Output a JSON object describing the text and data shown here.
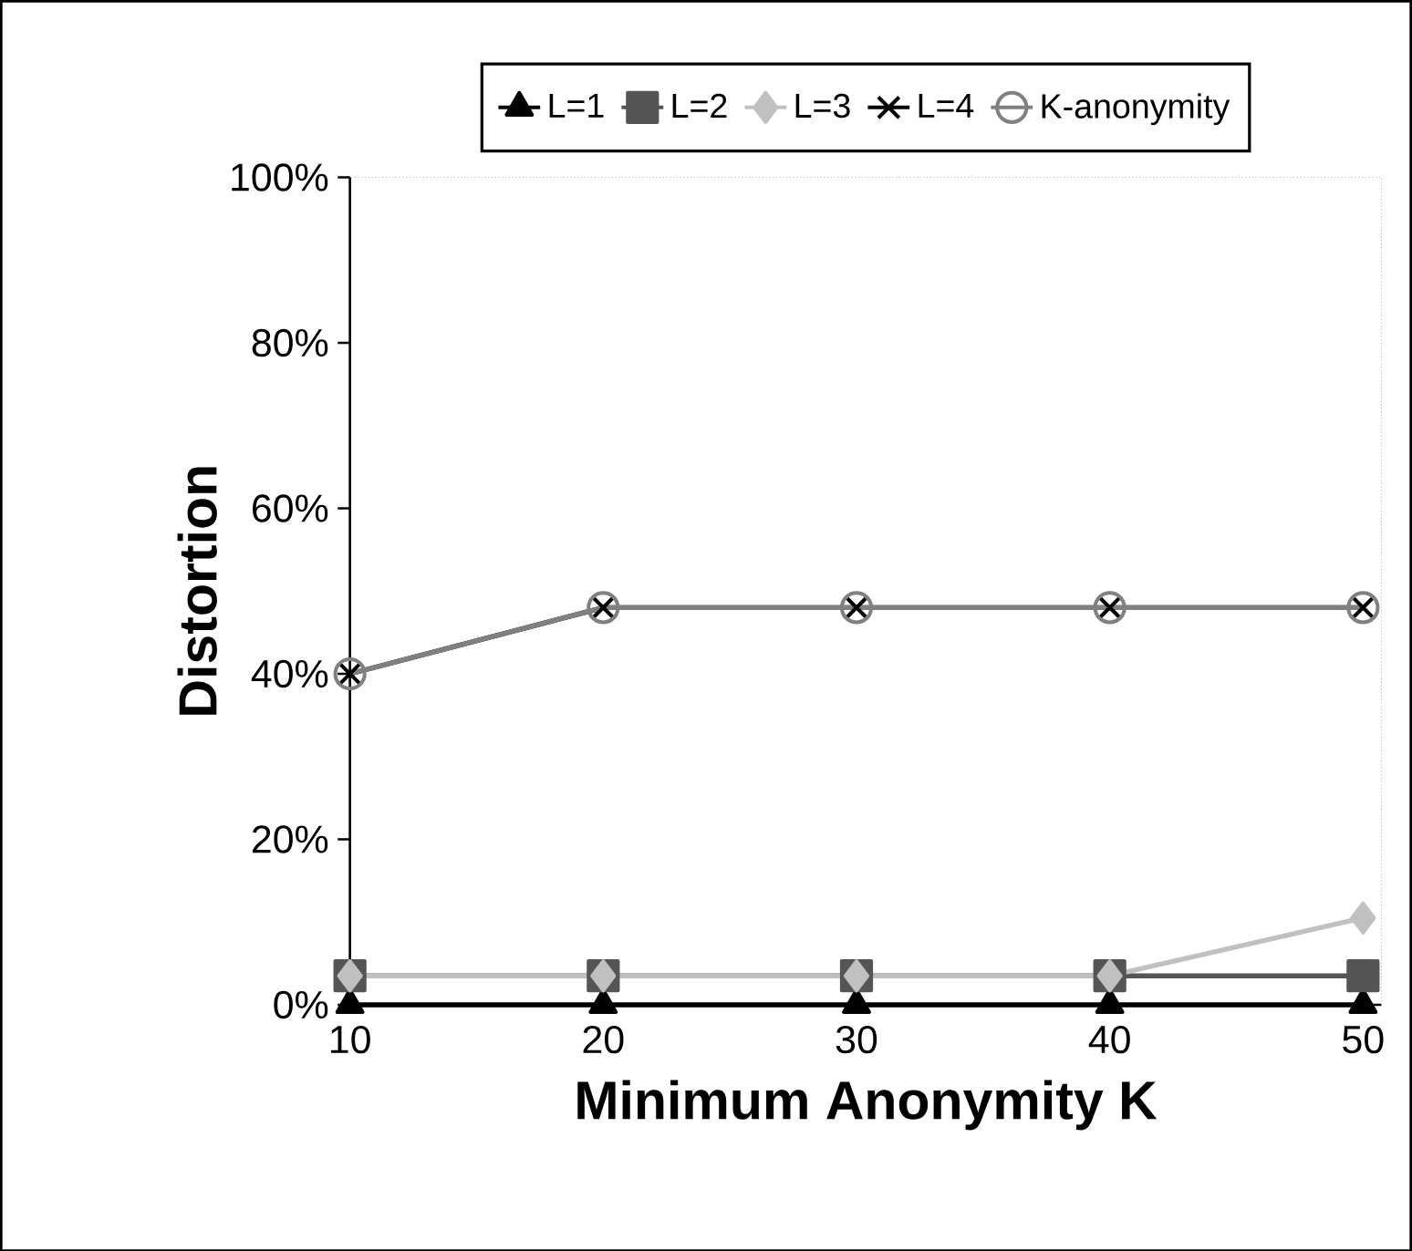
{
  "chart_data": {
    "type": "line",
    "xlabel": "Minimum Anonymity K",
    "ylabel": "Distortion",
    "categories": [
      "10",
      "20",
      "30",
      "40",
      "50"
    ],
    "series": [
      {
        "name": "L=1",
        "color": "#000000",
        "marker": "triangle",
        "values": [
          0,
          0,
          0,
          0,
          0
        ]
      },
      {
        "name": "L=2",
        "color": "#555555",
        "marker": "square",
        "values": [
          3.5,
          3.5,
          3.5,
          3.5,
          3.5
        ]
      },
      {
        "name": "L=3",
        "color": "#c0c0c0",
        "marker": "diamond",
        "values": [
          3.5,
          3.5,
          3.5,
          3.5,
          10.5
        ]
      },
      {
        "name": "L=4",
        "color": "#000000",
        "marker": "cross",
        "values": [
          40,
          48,
          48,
          48,
          48
        ]
      },
      {
        "name": "K-anonymity",
        "color": "#808080",
        "marker": "circle",
        "values": [
          40,
          48,
          48,
          48,
          48
        ]
      }
    ],
    "ylim": [
      0,
      100
    ],
    "yticks": [
      {
        "value": 0,
        "label": "0%"
      },
      {
        "value": 20,
        "label": "20%"
      },
      {
        "value": 40,
        "label": "40%"
      },
      {
        "value": 60,
        "label": "60%"
      },
      {
        "value": 80,
        "label": "80%"
      },
      {
        "value": 100,
        "label": "100%"
      }
    ],
    "grid": false,
    "legend": "top",
    "line_style": "solid"
  }
}
